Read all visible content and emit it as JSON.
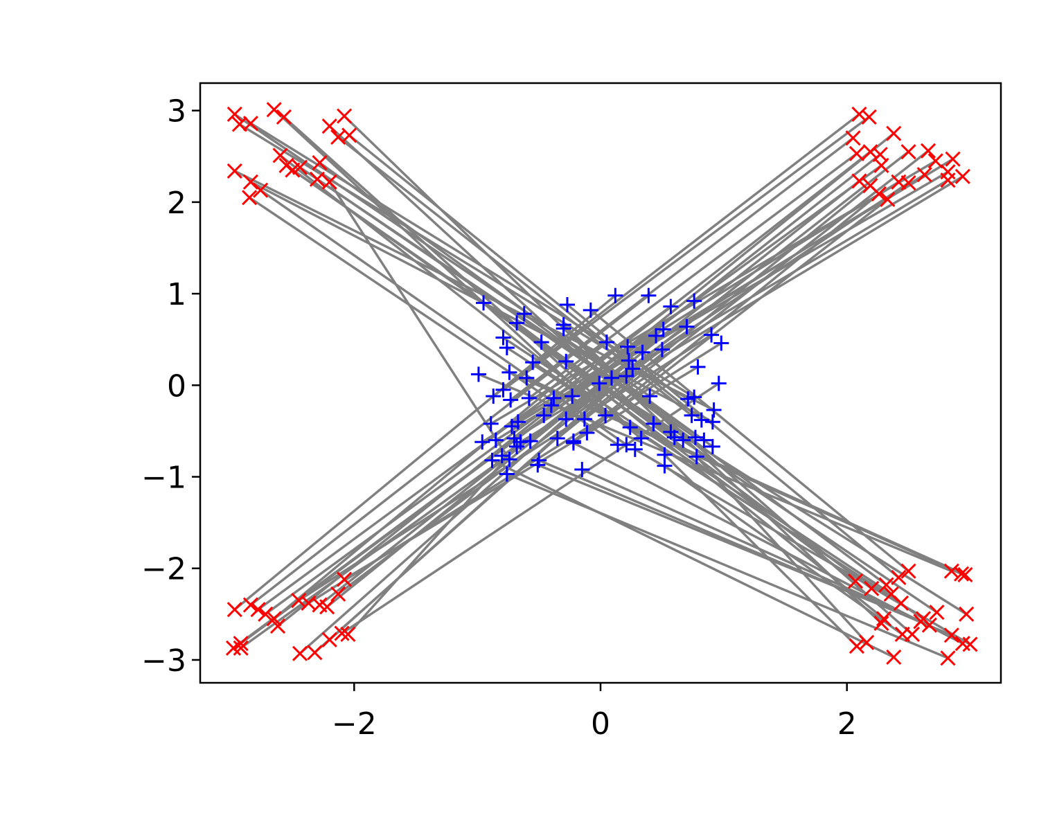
{
  "chart_data": {
    "type": "scatter",
    "title": "",
    "xlabel": "",
    "ylabel": "",
    "xlim": [
      -3.25,
      3.25
    ],
    "ylim": [
      -3.25,
      3.3
    ],
    "grid": false,
    "x_tick_labels": [
      "−2",
      "0",
      "2"
    ],
    "x_tick_values": [
      -2,
      0,
      2
    ],
    "y_tick_labels": [
      "−3",
      "−2",
      "−1",
      "0",
      "1",
      "2",
      "3"
    ],
    "y_tick_values": [
      -3,
      -2,
      -1,
      0,
      1,
      2,
      3
    ],
    "colors": {
      "source": "#0000ff",
      "target": "#ff0000",
      "link": "#808080",
      "axes": "#000000"
    },
    "series": [
      {
        "marker": "plus",
        "values": [
          [
            -0.95,
            0.9
          ],
          [
            -0.68,
            0.68
          ],
          [
            -0.62,
            0.78
          ],
          [
            -0.27,
            0.88
          ],
          [
            -0.08,
            0.82
          ],
          [
            0.12,
            0.98
          ],
          [
            0.39,
            0.98
          ],
          [
            0.57,
            0.86
          ],
          [
            0.76,
            0.92
          ],
          [
            -0.79,
            0.52
          ],
          [
            -0.76,
            0.41
          ],
          [
            -0.48,
            0.47
          ],
          [
            -0.3,
            0.66
          ],
          [
            -0.3,
            0.62
          ],
          [
            0.05,
            0.47
          ],
          [
            0.22,
            0.42
          ],
          [
            0.45,
            0.54
          ],
          [
            0.51,
            0.61
          ],
          [
            0.7,
            0.64
          ],
          [
            0.9,
            0.55
          ],
          [
            0.98,
            0.46
          ],
          [
            -0.55,
            0.25
          ],
          [
            -0.28,
            0.26
          ],
          [
            0.23,
            0.27
          ],
          [
            0.34,
            0.36
          ],
          [
            0.5,
            0.39
          ],
          [
            0.79,
            0.2
          ],
          [
            -0.99,
            0.12
          ],
          [
            -0.74,
            0.14
          ],
          [
            -0.6,
            0.08
          ],
          [
            -0.87,
            -0.12
          ],
          [
            -0.79,
            -0.05
          ],
          [
            -0.73,
            -0.16
          ],
          [
            -0.58,
            -0.14
          ],
          [
            -0.38,
            -0.14
          ],
          [
            -0.23,
            -0.12
          ],
          [
            -0.01,
            0.02
          ],
          [
            0.09,
            0.08
          ],
          [
            0.21,
            0.1
          ],
          [
            0.26,
            0.18
          ],
          [
            0.4,
            -0.12
          ],
          [
            0.71,
            -0.15
          ],
          [
            0.76,
            -0.13
          ],
          [
            0.96,
            0.02
          ],
          [
            -0.4,
            -0.22
          ],
          [
            -0.46,
            -0.33
          ],
          [
            -0.28,
            -0.37
          ],
          [
            -0.13,
            -0.37
          ],
          [
            0.04,
            -0.33
          ],
          [
            0.24,
            -0.46
          ],
          [
            0.43,
            -0.42
          ],
          [
            0.57,
            -0.51
          ],
          [
            0.74,
            -0.33
          ],
          [
            0.82,
            -0.38
          ],
          [
            0.92,
            -0.27
          ],
          [
            0.91,
            -0.4
          ],
          [
            -0.89,
            -0.42
          ],
          [
            -0.72,
            -0.45
          ],
          [
            -0.67,
            -0.4
          ],
          [
            -0.85,
            -0.6
          ],
          [
            -0.7,
            -0.58
          ],
          [
            -0.65,
            -0.62
          ],
          [
            -0.57,
            -0.61
          ],
          [
            -0.35,
            -0.58
          ],
          [
            -0.22,
            -0.61
          ],
          [
            -0.11,
            -0.52
          ],
          [
            0.14,
            -0.65
          ],
          [
            0.21,
            -0.65
          ],
          [
            0.33,
            -0.58
          ],
          [
            0.6,
            -0.57
          ],
          [
            0.67,
            -0.6
          ],
          [
            0.77,
            -0.57
          ],
          [
            0.84,
            -0.6
          ],
          [
            0.91,
            -0.67
          ],
          [
            -0.96,
            -0.62
          ],
          [
            -0.8,
            -0.77
          ],
          [
            -0.74,
            -0.81
          ],
          [
            -0.68,
            -0.67
          ],
          [
            -0.5,
            -0.82
          ],
          [
            -0.22,
            -0.63
          ],
          [
            0.28,
            -0.7
          ],
          [
            0.52,
            -0.76
          ],
          [
            0.78,
            -0.78
          ],
          [
            -0.88,
            -0.82
          ],
          [
            -0.76,
            -0.97
          ],
          [
            -0.51,
            -0.87
          ],
          [
            -0.15,
            -0.92
          ],
          [
            0.52,
            -0.88
          ]
        ]
      },
      {
        "marker": "x",
        "values": [
          [
            -2.97,
            2.96
          ],
          [
            -2.93,
            2.85
          ],
          [
            -2.84,
            2.86
          ],
          [
            -2.65,
            3.01
          ],
          [
            -2.57,
            2.93
          ],
          [
            -2.2,
            2.83
          ],
          [
            -2.08,
            2.94
          ],
          [
            -2.13,
            2.71
          ],
          [
            -2.04,
            2.73
          ],
          [
            -2.97,
            2.34
          ],
          [
            -2.84,
            2.22
          ],
          [
            -2.85,
            2.05
          ],
          [
            -2.76,
            2.13
          ],
          [
            -2.6,
            2.51
          ],
          [
            -2.55,
            2.4
          ],
          [
            -2.5,
            2.35
          ],
          [
            -2.44,
            2.38
          ],
          [
            -2.3,
            2.25
          ],
          [
            -2.28,
            2.43
          ],
          [
            -2.2,
            2.22
          ],
          [
            2.1,
            2.96
          ],
          [
            2.18,
            2.93
          ],
          [
            2.05,
            2.7
          ],
          [
            2.08,
            2.53
          ],
          [
            2.19,
            2.55
          ],
          [
            2.27,
            2.52
          ],
          [
            2.28,
            2.4
          ],
          [
            2.38,
            2.75
          ],
          [
            2.5,
            2.55
          ],
          [
            2.66,
            2.56
          ],
          [
            2.72,
            2.45
          ],
          [
            2.86,
            2.47
          ],
          [
            2.82,
            2.33
          ],
          [
            2.63,
            2.3
          ],
          [
            2.82,
            2.24
          ],
          [
            2.94,
            2.28
          ],
          [
            2.1,
            2.23
          ],
          [
            2.19,
            2.18
          ],
          [
            2.26,
            2.09
          ],
          [
            2.33,
            2.03
          ],
          [
            2.42,
            2.22
          ],
          [
            2.5,
            2.21
          ],
          [
            -2.97,
            -2.45
          ],
          [
            -2.84,
            -2.4
          ],
          [
            -2.78,
            -2.45
          ],
          [
            -2.72,
            -2.5
          ],
          [
            -2.65,
            -2.55
          ],
          [
            -2.62,
            -2.63
          ],
          [
            -2.92,
            -2.82
          ],
          [
            -2.98,
            -2.87
          ],
          [
            -2.92,
            -2.87
          ],
          [
            -2.45,
            -2.35
          ],
          [
            -2.37,
            -2.38
          ],
          [
            -2.28,
            -2.4
          ],
          [
            -2.22,
            -2.42
          ],
          [
            -2.13,
            -2.28
          ],
          [
            -2.08,
            -2.12
          ],
          [
            -2.44,
            -2.93
          ],
          [
            -2.32,
            -2.92
          ],
          [
            -2.2,
            -2.78
          ],
          [
            -2.1,
            -2.71
          ],
          [
            -2.05,
            -2.72
          ],
          [
            2.07,
            -2.14
          ],
          [
            2.2,
            -2.22
          ],
          [
            2.32,
            -2.18
          ],
          [
            2.42,
            -2.1
          ],
          [
            2.5,
            -2.03
          ],
          [
            2.36,
            -2.28
          ],
          [
            2.44,
            -2.38
          ],
          [
            2.3,
            -2.55
          ],
          [
            2.28,
            -2.6
          ],
          [
            2.53,
            -2.72
          ],
          [
            2.62,
            -2.55
          ],
          [
            2.73,
            -2.48
          ],
          [
            2.85,
            -2.03
          ],
          [
            2.93,
            -2.06
          ],
          [
            2.96,
            -2.07
          ],
          [
            2.97,
            -2.5
          ],
          [
            2.85,
            -2.73
          ],
          [
            2.94,
            -2.82
          ],
          [
            3.0,
            -2.83
          ],
          [
            2.08,
            -2.85
          ],
          [
            2.16,
            -2.81
          ],
          [
            2.38,
            -2.97
          ],
          [
            2.82,
            -2.98
          ],
          [
            2.6,
            -2.58
          ],
          [
            2.67,
            -2.62
          ],
          [
            2.45,
            -2.72
          ]
        ]
      }
    ]
  }
}
